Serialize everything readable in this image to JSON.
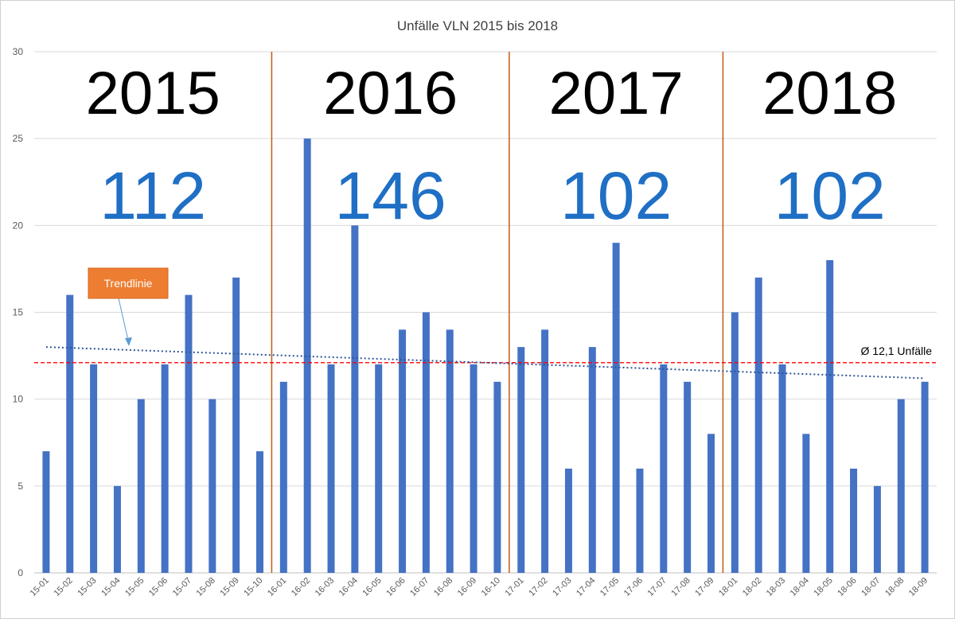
{
  "chart_data": {
    "type": "bar",
    "title": "Unfälle VLN 2015 bis 2018",
    "xlabel": "",
    "ylabel": "",
    "ylim": [
      0,
      30
    ],
    "yticks": [
      0,
      5,
      10,
      15,
      20,
      25,
      30
    ],
    "grid": true,
    "categories": [
      "15-01",
      "15-02",
      "15-03",
      "15-04",
      "15-05",
      "15-06",
      "15-07",
      "15-08",
      "15-09",
      "15-10",
      "16-01",
      "16-02",
      "16-03",
      "16-04",
      "16-05",
      "16-06",
      "16-07",
      "16-08",
      "16-09",
      "16-10",
      "17-01",
      "17-02",
      "17-03",
      "17-04",
      "17-05",
      "17-06",
      "17-07",
      "17-08",
      "17-09",
      "18-01",
      "18-02",
      "18-03",
      "18-04",
      "18-05",
      "18-06",
      "18-07",
      "18-08",
      "18-09"
    ],
    "values": [
      7,
      16,
      12,
      5,
      10,
      12,
      16,
      10,
      17,
      7,
      11,
      25,
      12,
      20,
      12,
      14,
      15,
      14,
      12,
      11,
      13,
      14,
      6,
      13,
      19,
      6,
      12,
      11,
      8,
      15,
      17,
      12,
      8,
      18,
      6,
      5,
      10,
      11
    ],
    "bar_color": "#4472c4",
    "years": [
      {
        "label": "2015",
        "total": "112",
        "first_index": 0,
        "last_index": 9
      },
      {
        "label": "2016",
        "total": "146",
        "first_index": 10,
        "last_index": 19
      },
      {
        "label": "2017",
        "total": "102",
        "first_index": 20,
        "last_index": 28
      },
      {
        "label": "2018",
        "total": "102",
        "first_index": 29,
        "last_index": 37
      }
    ],
    "year_separator_color": "#c55a11",
    "average": {
      "value": 12.1,
      "label": "Ø 12,1 Unfälle",
      "color": "#ff0000"
    },
    "trendline": {
      "start_value": 13.0,
      "end_value": 11.2,
      "color": "#2f5597"
    },
    "callout": {
      "label": "Trendlinie",
      "color": "#ed7d31"
    }
  }
}
